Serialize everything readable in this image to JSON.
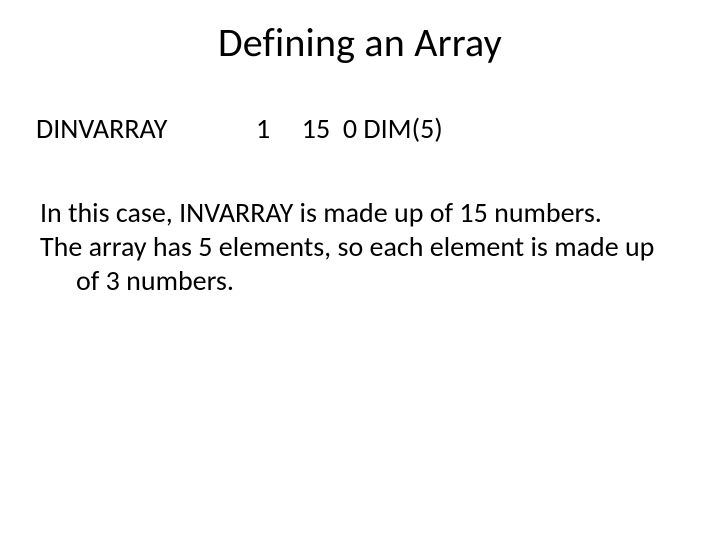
{
  "slide": {
    "title": "Defining an Array",
    "code_line": "DINVARRAY              1     15  0 DIM(5)",
    "paragraph1": "In this case, INVARRAY is made up of 15 numbers.",
    "paragraph2": "The array has 5 elements, so each element is made up of 3 numbers.",
    "colors": {
      "background": "#ffffff",
      "text": "#000000"
    },
    "typography": {
      "title_fontsize": 40,
      "body_fontsize": 28,
      "font_family": "Calibri"
    }
  }
}
